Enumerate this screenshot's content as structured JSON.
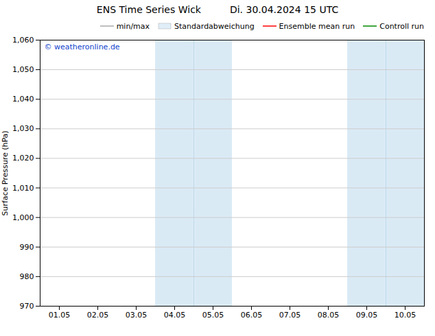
{
  "chart_data": {
    "type": "line",
    "title": "ENS Time Series Wick",
    "subtitle": "Di. 30.04.2024 15 UTC",
    "y_label": "Surface Pressure (hPa)",
    "categories": [
      "01.05",
      "02.05",
      "03.05",
      "04.05",
      "05.05",
      "06.05",
      "07.05",
      "08.05",
      "09.05",
      "10.05"
    ],
    "series": [
      {
        "name": "min/max",
        "type": "line",
        "color": "#aaaaaa",
        "values": [
          null,
          null,
          null,
          null,
          null,
          null,
          null,
          null,
          null,
          null
        ]
      },
      {
        "name": "Standardabweichung",
        "type": "area",
        "color": "#e0eef8",
        "values": [
          null,
          null,
          null,
          null,
          null,
          null,
          null,
          null,
          null,
          null
        ]
      },
      {
        "name": "Ensemble mean run",
        "type": "line",
        "color": "#ff0000",
        "values": [
          null,
          null,
          null,
          null,
          null,
          null,
          null,
          null,
          null,
          null
        ]
      },
      {
        "name": "Controll run",
        "type": "line",
        "color": "#008800",
        "values": [
          null,
          null,
          null,
          null,
          null,
          null,
          null,
          null,
          null,
          null
        ]
      }
    ],
    "shaded_spans": [
      {
        "categories": [
          "04.05",
          "05.05"
        ],
        "color": "#daeaf5",
        "divider_color": "#b8d4e8"
      },
      {
        "categories": [
          "09.05",
          "10.05"
        ],
        "color": "#daeaf5",
        "divider_color": "#b8d4e8"
      }
    ],
    "annotations": [
      {
        "text": "© weatheronline.de",
        "color": "#1144cc"
      }
    ],
    "ylim": [
      970,
      1060
    ],
    "yticks": [
      970,
      980,
      990,
      1000,
      1010,
      1020,
      1030,
      1040,
      1050,
      1060
    ],
    "grid": "y",
    "legend": "upper right"
  }
}
